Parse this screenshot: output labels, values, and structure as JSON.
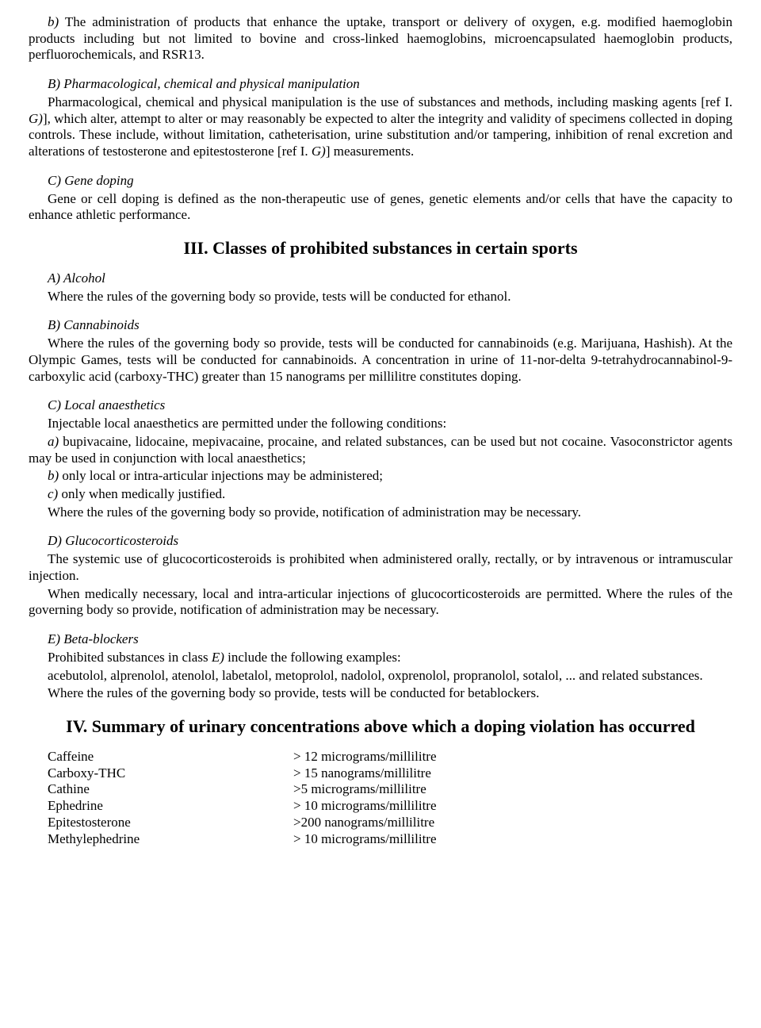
{
  "p1": {
    "lead": "b)",
    "text": " The administration of products that enhance the uptake, transport or delivery of oxygen, e.g. modified haemoglobin products including but not limited to bovine and cross-linked haemoglobins, microencapsulated haemoglobin products, perfluorochemicals, and RSR13."
  },
  "p2": {
    "head": "B) Pharmacological, chemical and physical manipulation",
    "t1": "Pharmacological, chemical and physical manipulation is the use of substances and methods, including masking agents [ref I. ",
    "g1": "G)",
    "t2": "], which alter, attempt to alter or may reasonably be expected to alter the integrity and validity of specimens collected in doping controls. These include, without limitation, catheterisation, urine substitution and/or tampering, inhibition of renal excretion and alterations of testosterone and epitestosterone [ref I. ",
    "g2": "G)",
    "t3": "] measurements."
  },
  "p3": {
    "head": "C) Gene doping",
    "text": "Gene or cell doping is defined as the non-therapeutic use of genes, genetic elements and/or cells that have the capacity to enhance athletic performance."
  },
  "h3": "III. Classes of prohibited substances in certain sports",
  "s3a": {
    "head": "A) Alcohol",
    "text": "Where the rules of the governing body so provide, tests will be conducted for ethanol."
  },
  "s3b": {
    "head": "B) Cannabinoids",
    "text": "Where the rules of the governing body so provide, tests will be conducted for cannabinoids (e.g. Marijuana, Hashish). At the Olympic Games, tests will be conducted for cannabinoids. A concentration in urine of 11-nor-delta 9-tetrahydrocannabinol-9-carboxylic acid (carboxy-THC) greater than 15 nanograms per millilitre constitutes doping."
  },
  "s3c": {
    "head": "C) Local anaesthetics",
    "intro": "Injectable local anaesthetics are permitted under the following conditions:",
    "a_lead": "a)",
    "a_text": " bupivacaine, lidocaine, mepivacaine, procaine, and related substances, can be used but not cocaine. Vasoconstrictor agents may be used in conjunction with local anaesthetics;",
    "b_lead": "b)",
    "b_text": " only local or intra-articular injections may be administered;",
    "c_lead": "c)",
    "c_text": " only when medically justified.",
    "tail": "Where the rules of the governing body so provide, notification of administration may be necessary."
  },
  "s3d": {
    "head": "D) Glucocorticosteroids",
    "p1": "The systemic use of glucocorticosteroids is prohibited when administered orally, rectally, or by intravenous or intramuscular injection.",
    "p2": "When medically necessary, local and intra-articular injections of glucocorticosteroids are permitted. Where the rules of the governing body so provide, notification of administration may be necessary."
  },
  "s3e": {
    "head": "E) Beta-blockers",
    "intro_a": "Prohibited substances in class ",
    "intro_e": "E)",
    "intro_b": " include the following examples:",
    "list": "acebutolol, alprenolol, atenolol, labetalol, metoprolol, nadolol, oxprenolol, propranolol, sotalol, ... and related substances.",
    "tail": "Where the rules of the governing body so provide, tests will be conducted for betablockers."
  },
  "h4": "IV. Summary of urinary concentrations above which a doping violation has occurred",
  "table": {
    "rows": [
      {
        "sub": "Caffeine",
        "val": "> 12 micrograms/millilitre"
      },
      {
        "sub": "Carboxy-THC",
        "val": "> 15 nanograms/millilitre"
      },
      {
        "sub": "Cathine",
        "val": ">5 micrograms/millilitre"
      },
      {
        "sub": "Ephedrine",
        "val": "> 10 micrograms/millilitre"
      },
      {
        "sub": "Epitestosterone",
        "val": ">200 nanograms/millilitre"
      },
      {
        "sub": "Methylephedrine",
        "val": "> 10 micrograms/millilitre"
      }
    ]
  }
}
